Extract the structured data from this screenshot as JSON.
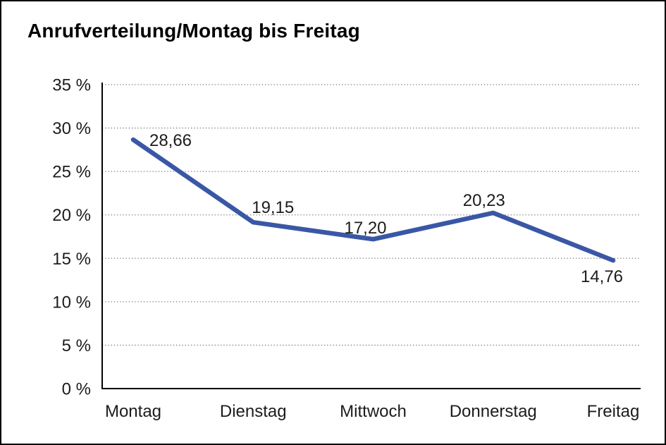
{
  "window": {
    "background_color": "#ffffff",
    "border_color": "#000000"
  },
  "chart_data": {
    "type": "line",
    "title": "Anrufverteilung/Montag bis Freitag",
    "categories": [
      "Montag",
      "Dienstag",
      "Mittwoch",
      "Donnerstag",
      "Freitag"
    ],
    "values": [
      28.66,
      19.15,
      17.2,
      20.23,
      14.76
    ],
    "value_labels": [
      "28,66",
      "19,15",
      "17,20",
      "20,23",
      "14,76"
    ],
    "y_tick_labels": [
      "0 %",
      "5 %",
      "10 %",
      "15 %",
      "20 %",
      "25 %",
      "30 %",
      "35 %"
    ],
    "ylim": [
      0,
      35
    ],
    "y_tick_step": 5,
    "xlabel": "",
    "ylabel": "",
    "legend": "none",
    "grid": "horizontal-dotted",
    "gridline_color": "#7a7a7a",
    "axis_color": "#000000",
    "line_color": "#3A57A6",
    "text_color": "#1c1c1c",
    "decimal_separator": ","
  }
}
